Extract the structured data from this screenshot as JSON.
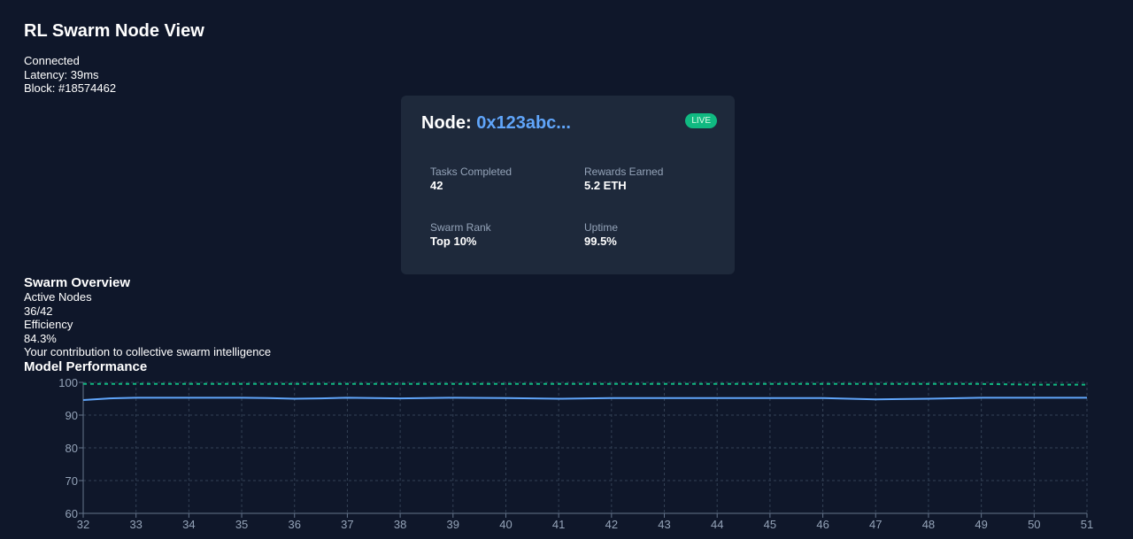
{
  "app": {
    "title": "RL Swarm Node View"
  },
  "connection": {
    "status": "Connected",
    "latency": "Latency: 39ms",
    "block": "Block: #18574462"
  },
  "node_card": {
    "title_prefix": "Node: ",
    "node_id": "0x123abc...",
    "badge": "LIVE",
    "stats": [
      {
        "label": "Tasks Completed",
        "value": "42"
      },
      {
        "label": "Rewards Earned",
        "value": "5.2 ETH"
      },
      {
        "label": "Swarm Rank",
        "value": "Top 10%"
      },
      {
        "label": "Uptime",
        "value": "99.5%"
      }
    ]
  },
  "overview": {
    "heading": "Swarm Overview",
    "active_nodes_label": "Active Nodes",
    "active_nodes_value": "36/42",
    "efficiency_label": "Efficiency",
    "efficiency_value": "84.3%",
    "contribution_text": "Your contribution to collective swarm intelligence"
  },
  "performance": {
    "heading": "Model Performance"
  },
  "colors": {
    "background": "#0f172a",
    "card": "#1e293b",
    "accent_blue": "#60a5fa",
    "live_green": "#10b981",
    "grid": "#334155",
    "muted_text": "#94a3b8"
  },
  "chart_data": {
    "type": "line",
    "title": "Model Performance",
    "xlabel": "",
    "ylabel": "",
    "grid": true,
    "xlim": [
      32,
      51
    ],
    "ylim": [
      60,
      100
    ],
    "x_ticks": [
      32,
      33,
      34,
      35,
      36,
      37,
      38,
      39,
      40,
      41,
      42,
      43,
      44,
      45,
      46,
      47,
      48,
      49,
      50,
      51
    ],
    "y_ticks": [
      60,
      70,
      80,
      90,
      100
    ],
    "x": [
      32,
      32.5,
      33,
      34,
      35,
      35.5,
      36,
      36.5,
      37,
      38,
      39,
      40,
      41,
      42,
      43,
      44,
      45,
      46,
      46.5,
      47,
      48,
      49,
      50,
      51
    ],
    "series": [
      {
        "style": "solid",
        "color": "#60a5fa",
        "values": [
          94.6,
          95.1,
          95.3,
          95.3,
          95.3,
          95.2,
          95.0,
          95.1,
          95.3,
          95.1,
          95.3,
          95.2,
          95.0,
          95.2,
          95.2,
          95.2,
          95.2,
          95.2,
          95.0,
          94.8,
          95.0,
          95.3,
          95.3,
          95.3
        ]
      },
      {
        "style": "dashed",
        "color": "#10b981",
        "values": [
          99.5,
          99.5,
          99.5,
          99.5,
          99.5,
          99.5,
          99.5,
          99.5,
          99.5,
          99.5,
          99.5,
          99.5,
          99.5,
          99.5,
          99.5,
          99.5,
          99.5,
          99.5,
          99.5,
          99.5,
          99.5,
          99.5,
          99.3,
          99.3
        ]
      }
    ]
  }
}
